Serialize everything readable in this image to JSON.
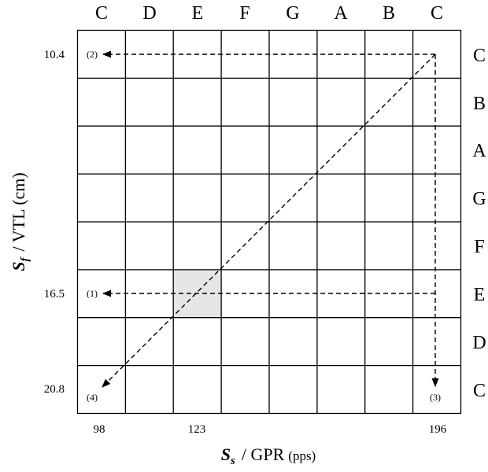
{
  "top_notes": [
    "C",
    "D",
    "E",
    "F",
    "G",
    "A",
    "B",
    "C"
  ],
  "right_notes": [
    "C",
    "B",
    "A",
    "G",
    "F",
    "E",
    "D",
    "C"
  ],
  "y_ticks": [
    "10.4",
    "16.5",
    "20.8"
  ],
  "x_ticks": [
    "98",
    "123",
    "196"
  ],
  "annotations": [
    "(1)",
    "(2)",
    "(3)",
    "(4)"
  ],
  "y_axis": {
    "symbol": "S",
    "subscript": "f",
    "label": "/ VTL (cm)"
  },
  "x_axis": {
    "symbol": "S",
    "subscript": "s",
    "label": "/ GPR",
    "unit": "(pps)"
  },
  "colors": {
    "highlight_cell": "#e6e6e6",
    "line": "#000000"
  }
}
